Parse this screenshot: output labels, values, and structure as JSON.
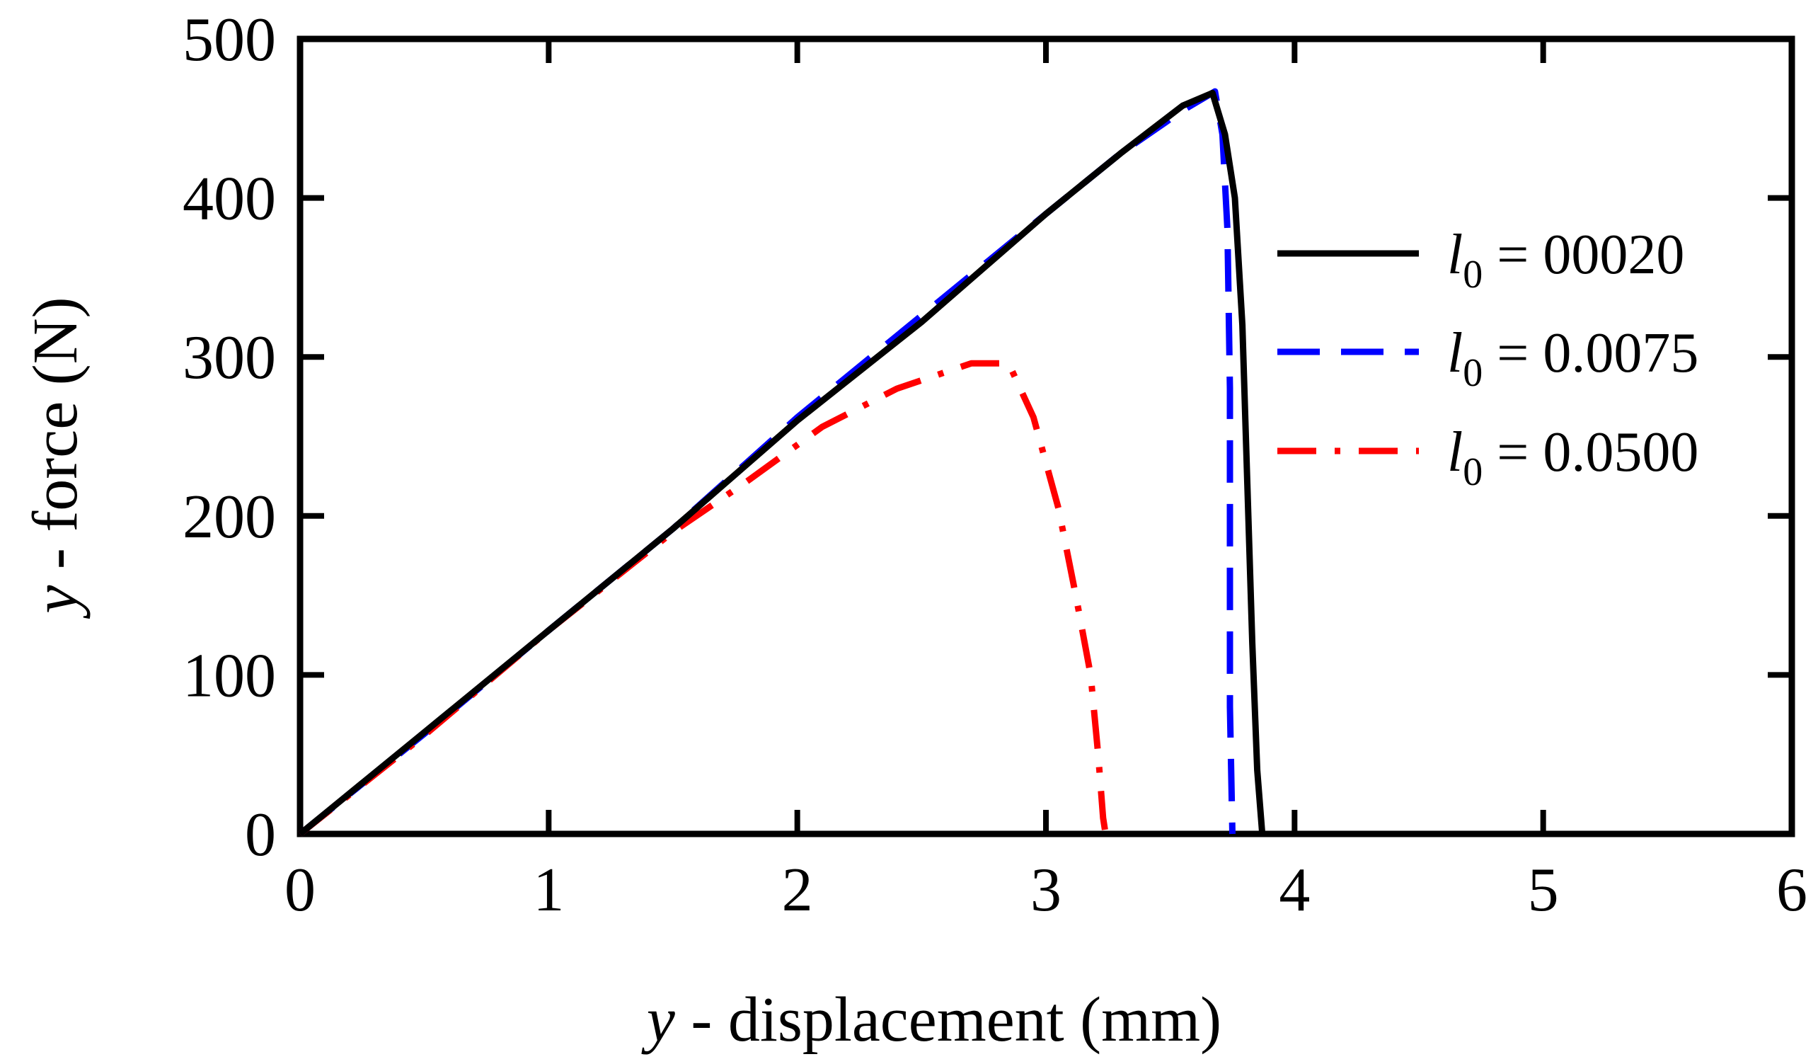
{
  "chart_data": {
    "type": "line",
    "xlabel": {
      "var": "y",
      "rest": " - displacement (mm)"
    },
    "ylabel": {
      "var": "y",
      "rest": " - force (N)"
    },
    "xlim": [
      0,
      6
    ],
    "ylim": [
      0,
      500
    ],
    "x_ticks": [
      0,
      1,
      2,
      3,
      4,
      5,
      6
    ],
    "y_ticks": [
      0,
      100,
      200,
      300,
      400,
      500
    ],
    "x_tick_labels": [
      "0",
      "1",
      "2",
      "3",
      "4",
      "5",
      "6"
    ],
    "y_tick_labels": [
      "0",
      "100",
      "200",
      "300",
      "400",
      "500"
    ],
    "grid": false,
    "legend_position": "right",
    "series": [
      {
        "legend": {
          "symbol": "l",
          "sub": "0",
          "value": " = 00020"
        },
        "color": "#000000",
        "style": "solid",
        "points": [
          [
            0,
            0
          ],
          [
            0.5,
            64
          ],
          [
            1.0,
            128
          ],
          [
            1.5,
            192
          ],
          [
            2.0,
            260
          ],
          [
            2.5,
            322
          ],
          [
            3.0,
            390
          ],
          [
            3.3,
            428
          ],
          [
            3.55,
            458
          ],
          [
            3.67,
            466
          ],
          [
            3.72,
            440
          ],
          [
            3.76,
            400
          ],
          [
            3.79,
            320
          ],
          [
            3.81,
            220
          ],
          [
            3.83,
            120
          ],
          [
            3.85,
            40
          ],
          [
            3.87,
            0
          ]
        ]
      },
      {
        "legend": {
          "symbol": "l",
          "sub": "0",
          "value": " = 0.0075"
        },
        "color": "#0000ff",
        "style": "dashed",
        "points": [
          [
            0,
            0
          ],
          [
            0.5,
            63
          ],
          [
            1.0,
            128
          ],
          [
            1.5,
            192
          ],
          [
            2.0,
            262
          ],
          [
            2.5,
            326
          ],
          [
            3.0,
            390
          ],
          [
            3.3,
            428
          ],
          [
            3.55,
            455
          ],
          [
            3.68,
            467
          ],
          [
            3.71,
            440
          ],
          [
            3.73,
            380
          ],
          [
            3.74,
            280
          ],
          [
            3.74,
            180
          ],
          [
            3.74,
            80
          ],
          [
            3.75,
            0
          ]
        ]
      },
      {
        "legend": {
          "symbol": "l",
          "sub": "0",
          "value": " = 0.0500"
        },
        "color": "#ff0000",
        "style": "dashdot",
        "points": [
          [
            0,
            0
          ],
          [
            0.5,
            62
          ],
          [
            1.0,
            128
          ],
          [
            1.5,
            190
          ],
          [
            1.8,
            222
          ],
          [
            2.1,
            256
          ],
          [
            2.4,
            280
          ],
          [
            2.7,
            296
          ],
          [
            2.85,
            296
          ],
          [
            2.95,
            262
          ],
          [
            3.05,
            205
          ],
          [
            3.12,
            150
          ],
          [
            3.18,
            100
          ],
          [
            3.21,
            50
          ],
          [
            3.23,
            10
          ],
          [
            3.24,
            0
          ]
        ]
      }
    ]
  }
}
